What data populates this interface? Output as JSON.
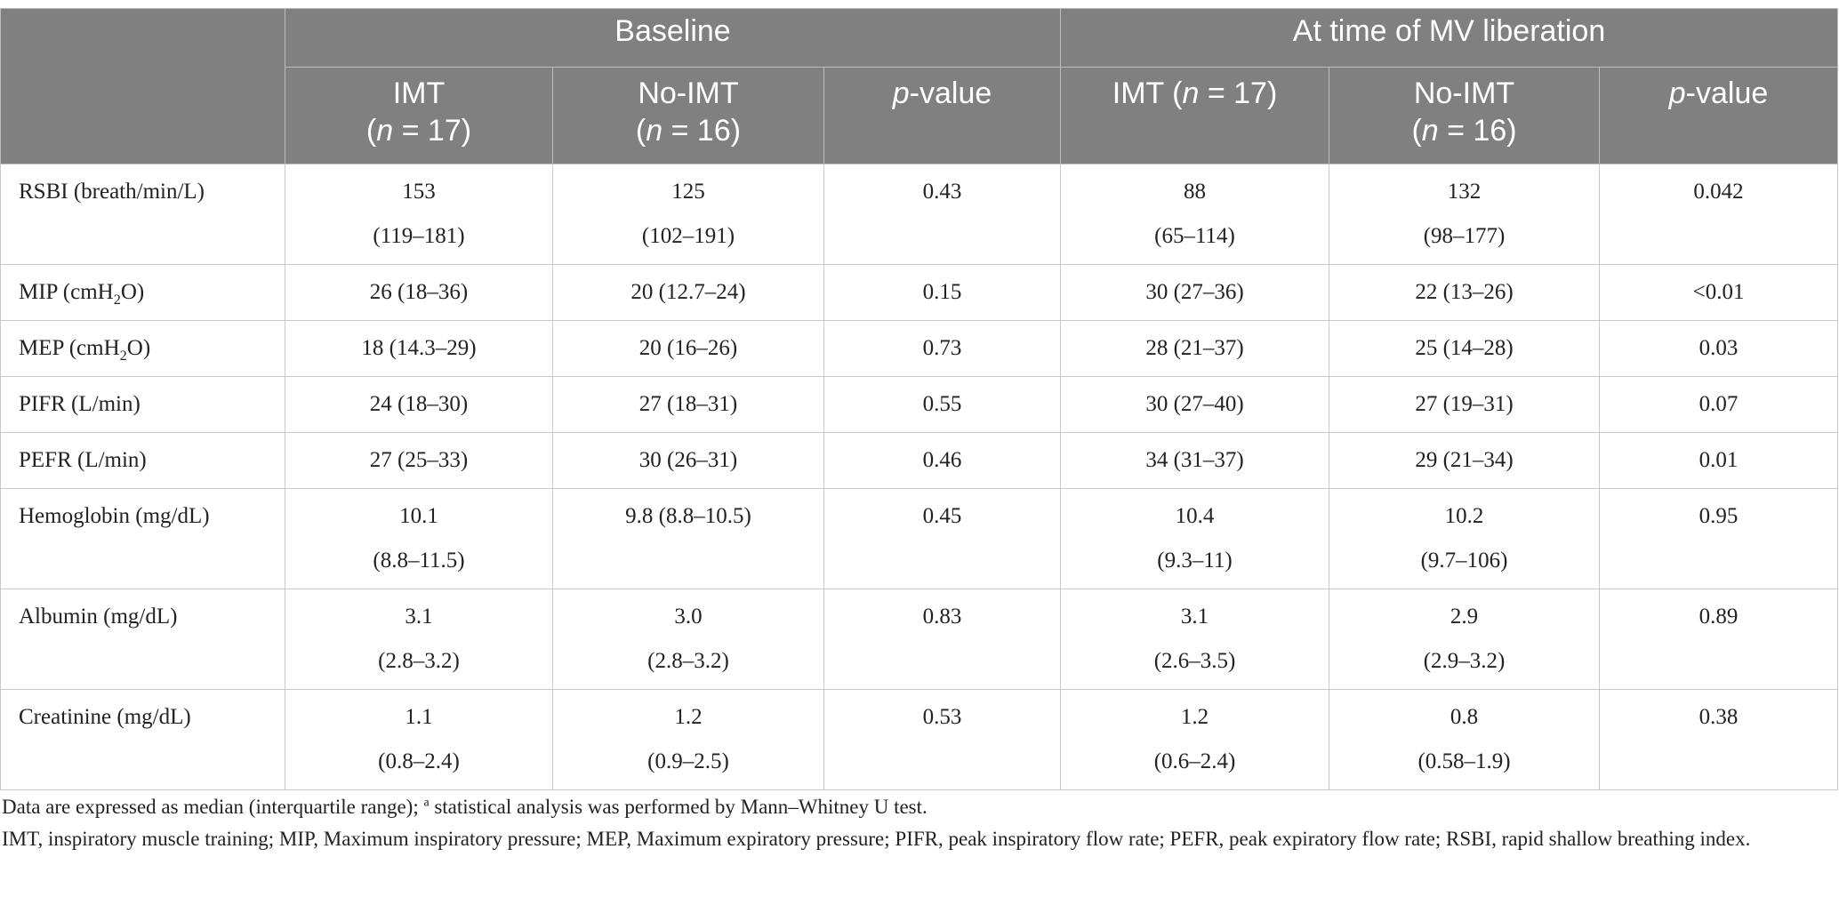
{
  "header": {
    "groups": [
      "Baseline",
      "At time of MV liberation"
    ],
    "columns": [
      [
        "IMT",
        [
          "(",
          {
            "text": "n",
            "style": "italic"
          },
          " = 17)"
        ]
      ],
      [
        "No-IMT",
        [
          "(",
          {
            "text": "n",
            "style": "italic"
          },
          " = 16)"
        ]
      ],
      [
        [
          {
            "text": "p",
            "style": "italic"
          },
          "-value"
        ]
      ],
      [
        [
          "IMT (",
          {
            "text": "n",
            "style": "italic"
          },
          " = 17)"
        ]
      ],
      [
        "No-IMT",
        [
          "(",
          {
            "text": "n",
            "style": "italic"
          },
          " = 16)"
        ]
      ],
      [
        [
          {
            "text": "p",
            "style": "italic"
          },
          "-value"
        ]
      ]
    ]
  },
  "table": {
    "rows": [
      {
        "label": "RSBI (breath/min/L)",
        "cells": [
          [
            "153",
            "(119–181)"
          ],
          [
            "125",
            "(102–191)"
          ],
          [
            "0.43"
          ],
          [
            "88",
            "(65–114)"
          ],
          [
            "132",
            "(98–177)"
          ],
          [
            "0.042"
          ]
        ]
      },
      {
        "label": [
          "MIP (cmH",
          {
            "text": "2",
            "style": "sub"
          },
          "O)"
        ],
        "cells": [
          [
            "26 (18–36)"
          ],
          [
            "20 (12.7–24)"
          ],
          [
            "0.15"
          ],
          [
            "30 (27–36)"
          ],
          [
            "22 (13–26)"
          ],
          [
            "<0.01"
          ]
        ]
      },
      {
        "label": [
          "MEP (cmH",
          {
            "text": "2",
            "style": "sub"
          },
          "O)"
        ],
        "cells": [
          [
            "18 (14.3–29)"
          ],
          [
            "20 (16–26)"
          ],
          [
            "0.73"
          ],
          [
            "28 (21–37)"
          ],
          [
            "25 (14–28)"
          ],
          [
            "0.03"
          ]
        ]
      },
      {
        "label": "PIFR (L/min)",
        "cells": [
          [
            "24 (18–30)"
          ],
          [
            "27 (18–31)"
          ],
          [
            "0.55"
          ],
          [
            "30 (27–40)"
          ],
          [
            "27 (19–31)"
          ],
          [
            "0.07"
          ]
        ]
      },
      {
        "label": "PEFR (L/min)",
        "cells": [
          [
            "27 (25–33)"
          ],
          [
            "30 (26–31)"
          ],
          [
            "0.46"
          ],
          [
            "34 (31–37)"
          ],
          [
            "29 (21–34)"
          ],
          [
            "0.01"
          ]
        ]
      },
      {
        "label": "Hemoglobin (mg/dL)",
        "cells": [
          [
            "10.1",
            "(8.8–11.5)"
          ],
          [
            "9.8 (8.8–10.5)"
          ],
          [
            "0.45"
          ],
          [
            "10.4",
            "(9.3–11)"
          ],
          [
            "10.2",
            "(9.7–106)"
          ],
          [
            "0.95"
          ]
        ]
      },
      {
        "label": "Albumin (mg/dL)",
        "cells": [
          [
            "3.1",
            "(2.8–3.2)"
          ],
          [
            "3.0",
            "(2.8–3.2)"
          ],
          [
            "0.83"
          ],
          [
            "3.1",
            "(2.6–3.5)"
          ],
          [
            "2.9",
            "(2.9–3.2)"
          ],
          [
            "0.89"
          ]
        ]
      },
      {
        "label": "Creatinine (mg/dL)",
        "cells": [
          [
            "1.1",
            "(0.8–2.4)"
          ],
          [
            "1.2",
            "(0.9–2.5)"
          ],
          [
            "0.53"
          ],
          [
            "1.2",
            "(0.6–2.4)"
          ],
          [
            "0.8",
            "(0.58–1.9)"
          ],
          [
            "0.38"
          ]
        ]
      }
    ]
  },
  "footnotes": [
    [
      "Data are expressed as median (interquartile range); ",
      {
        "text": "a",
        "style": "sup"
      },
      " statistical analysis was performed by Mann–Whitney U test."
    ],
    "IMT, inspiratory muscle training; MIP, Maximum inspiratory pressure; MEP, Maximum expiratory pressure; PIFR, peak inspiratory flow rate; PEFR, peak expiratory flow rate; RSBI, rapid shallow breathing index."
  ]
}
